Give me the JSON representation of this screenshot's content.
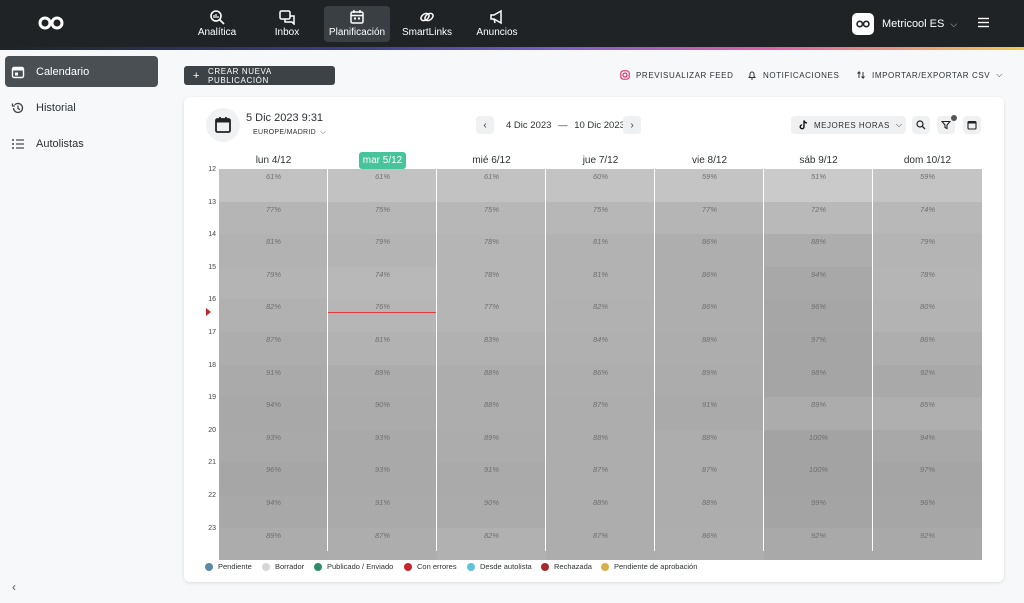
{
  "nav": {
    "items": [
      {
        "label": "Analítica",
        "icon": "analytics-icon"
      },
      {
        "label": "Inbox",
        "icon": "chat-icon"
      },
      {
        "label": "Planificación",
        "icon": "calendar-icon"
      },
      {
        "label": "SmartLinks",
        "icon": "link-icon"
      },
      {
        "label": "Anuncios",
        "icon": "megaphone-icon"
      }
    ],
    "active_index": 2,
    "account_name": "Metricool ES"
  },
  "sidebar": {
    "items": [
      {
        "label": "Calendario",
        "icon": "calendar-icon"
      },
      {
        "label": "Historial",
        "icon": "history-icon"
      },
      {
        "label": "Autolistas",
        "icon": "list-icon"
      }
    ],
    "collapse_glyph": "‹"
  },
  "toolbar": {
    "new_publication": "CREAR NUEVA PUBLICACIÓN",
    "preview_feed": "PREVISUALIZAR FEED",
    "notifications": "NOTIFICACIONES",
    "import_export": "IMPORTAR/EXPORTAR CSV"
  },
  "calendar": {
    "datetime": "5 Dic 2023 9:31",
    "timezone": "EUROPE/MADRID",
    "range_start": "4 Dic 2023",
    "range_sep": "—",
    "range_end": "10 Dic 2023",
    "best_hours": "MEJORES HORAS",
    "days": [
      "lun 4/12",
      "mar 5/12",
      "mié 6/12",
      "jue 7/12",
      "vie 8/12",
      "sáb 9/12",
      "dom 10/12"
    ],
    "today_index": 1,
    "hours": [
      "12",
      "13",
      "14",
      "15",
      "16",
      "17",
      "18",
      "19",
      "20",
      "21",
      "22",
      "23"
    ],
    "grid": [
      [
        "61%",
        "61%",
        "61%",
        "60%",
        "59%",
        "51%",
        "59%"
      ],
      [
        "77%",
        "75%",
        "75%",
        "75%",
        "77%",
        "72%",
        "74%"
      ],
      [
        "81%",
        "79%",
        "78%",
        "81%",
        "86%",
        "88%",
        "79%"
      ],
      [
        "79%",
        "74%",
        "78%",
        "81%",
        "86%",
        "94%",
        "78%"
      ],
      [
        "82%",
        "76%",
        "77%",
        "82%",
        "86%",
        "96%",
        "80%"
      ],
      [
        "87%",
        "81%",
        "83%",
        "84%",
        "88%",
        "97%",
        "86%"
      ],
      [
        "91%",
        "89%",
        "88%",
        "86%",
        "89%",
        "98%",
        "92%"
      ],
      [
        "94%",
        "90%",
        "88%",
        "87%",
        "91%",
        "89%",
        "85%"
      ],
      [
        "93%",
        "93%",
        "89%",
        "88%",
        "88%",
        "100%",
        "94%"
      ],
      [
        "96%",
        "93%",
        "91%",
        "87%",
        "87%",
        "100%",
        "97%"
      ],
      [
        "94%",
        "91%",
        "90%",
        "88%",
        "88%",
        "99%",
        "96%"
      ],
      [
        "89%",
        "87%",
        "82%",
        "87%",
        "86%",
        "92%",
        "92%"
      ]
    ]
  },
  "legend": [
    {
      "label": "Pendiente",
      "color": "#5a8aa6"
    },
    {
      "label": "Borrador",
      "color": "#d4d6d8"
    },
    {
      "label": "Publicado / Enviado",
      "color": "#2e8c6b"
    },
    {
      "label": "Con errores",
      "color": "#c6262e"
    },
    {
      "label": "Desde autolista",
      "color": "#5fc4d8"
    },
    {
      "label": "Rechazada",
      "color": "#a8282e"
    },
    {
      "label": "Pendiente de aprobación",
      "color": "#d9b04a"
    }
  ]
}
